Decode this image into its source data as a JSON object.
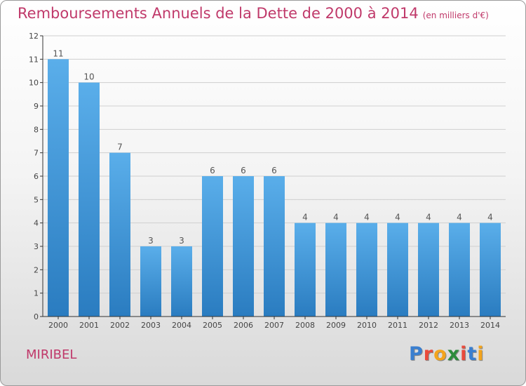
{
  "title": "Remboursements Annuels de la Dette de 2000 à 2014",
  "unit": "(en milliers d'€)",
  "commune": "MIRIBEL",
  "logo": {
    "text": "Proxiti",
    "letter_colors": [
      "#3a7fd0",
      "#e94b3c",
      "#f3a41c",
      "#2d8c3c",
      "#e94b3c",
      "#3a7fd0",
      "#f3a41c"
    ]
  },
  "colors": {
    "bar_top": "#5aaeea",
    "bar_bottom": "#2a7cc0",
    "title": "#c0396a"
  },
  "chart_data": {
    "type": "bar",
    "categories": [
      "2000",
      "2001",
      "2002",
      "2003",
      "2004",
      "2005",
      "2006",
      "2007",
      "2008",
      "2009",
      "2010",
      "2011",
      "2012",
      "2013",
      "2014"
    ],
    "values": [
      11,
      10,
      7,
      3,
      3,
      6,
      6,
      6,
      4,
      4,
      4,
      4,
      4,
      4,
      4
    ],
    "data_labels": [
      "11",
      "10",
      "7",
      "3",
      "3",
      "6",
      "6",
      "6",
      "4",
      "4",
      "4",
      "4",
      "4",
      "4",
      "4"
    ],
    "y_ticks": [
      "0",
      "1",
      "2",
      "3",
      "4",
      "5",
      "6",
      "7",
      "8",
      "9",
      "10",
      "11",
      "12"
    ],
    "ylim": [
      0,
      12
    ],
    "grid": true,
    "legend": "none"
  }
}
